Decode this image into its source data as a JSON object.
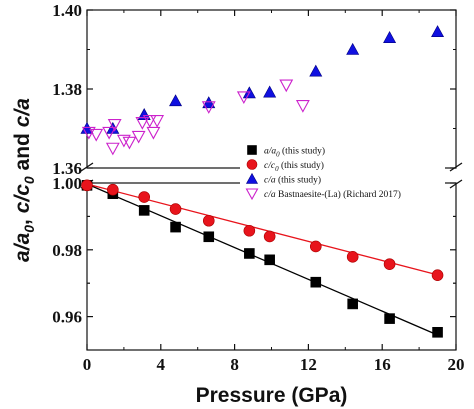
{
  "chart_data": {
    "type": "scatter",
    "xlabel": "Pressure (GPa)",
    "ylabel": "a/a0, c/c0 and c/a",
    "xlim": [
      0,
      20
    ],
    "xticks": [
      "0",
      "4",
      "8",
      "12",
      "16",
      "20"
    ],
    "upper_panel": {
      "ylim": [
        1.36,
        1.4
      ],
      "yticks": [
        "1.36",
        "1.38",
        "1.40"
      ]
    },
    "lower_panel": {
      "ylim": [
        0.95,
        1.0
      ],
      "yticks": [
        "0.96",
        "0.98",
        "1.00"
      ]
    },
    "axis_break": true,
    "legend_position": "center-right",
    "series": [
      {
        "name": "a/a0 (this study)",
        "label_main": "a/a",
        "label_sub": "0",
        "label_note": " (this study)",
        "marker": "square",
        "color": "#000000",
        "filled": true,
        "panel": "lower",
        "fit_line": [
          [
            0,
            0.9997
          ],
          [
            19,
            0.9545
          ]
        ],
        "x": [
          0,
          1.4,
          3.1,
          4.8,
          6.6,
          8.8,
          9.9,
          12.4,
          14.4,
          16.4,
          19.0
        ],
        "y": [
          0.9993,
          0.9968,
          0.9918,
          0.9868,
          0.9839,
          0.9789,
          0.977,
          0.9703,
          0.9638,
          0.9594,
          0.9553
        ]
      },
      {
        "name": "c/c0 (this study)",
        "label_main": "c/c",
        "label_sub": "0",
        "label_note": " (this study)",
        "marker": "circle",
        "color": "#e8141c",
        "filled": true,
        "panel": "lower",
        "fit_line": [
          [
            0,
            0.9997
          ],
          [
            19,
            0.9725
          ]
        ],
        "x": [
          0,
          1.4,
          3.1,
          4.8,
          6.6,
          8.8,
          9.9,
          12.4,
          14.4,
          16.4,
          19.0
        ],
        "y": [
          0.9993,
          0.998,
          0.9958,
          0.9922,
          0.9887,
          0.9857,
          0.984,
          0.981,
          0.9779,
          0.9757,
          0.9724
        ]
      },
      {
        "name": "c/a (this study)",
        "label_main": "c/a",
        "label_sub": "",
        "label_note": " (this study)",
        "marker": "triangle-up",
        "color": "#1010e0",
        "filled": true,
        "panel": "upper",
        "x": [
          0,
          1.4,
          3.1,
          4.8,
          6.6,
          8.8,
          9.9,
          12.4,
          14.4,
          16.4,
          19.0
        ],
        "y": [
          1.37,
          1.37,
          1.3735,
          1.377,
          1.3765,
          1.379,
          1.3792,
          1.3845,
          1.39,
          1.393,
          1.3945
        ]
      },
      {
        "name": "c/a Bastnaesite-(La) (Richard 2017)",
        "label_main": "c/a",
        "label_sub": "",
        "label_note": " Bastnaesite-(La) (Richard 2017)",
        "marker": "triangle-down",
        "color": "#cc22cc",
        "filled": false,
        "panel": "upper",
        "x": [
          0.1,
          0.5,
          1.2,
          1.4,
          1.5,
          2.0,
          2.3,
          2.8,
          3.0,
          3.4,
          3.6,
          3.8,
          6.6,
          8.5,
          10.8,
          11.7
        ],
        "y": [
          1.369,
          1.3685,
          1.369,
          1.365,
          1.371,
          1.367,
          1.3665,
          1.368,
          1.3715,
          1.372,
          1.369,
          1.372,
          1.3755,
          1.378,
          1.381,
          1.3758
        ]
      }
    ]
  }
}
